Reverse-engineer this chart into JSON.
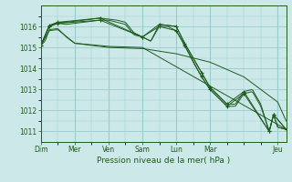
{
  "xlabel": "Pression niveau de la mer( hPa )",
  "bg_color": "#cce8e8",
  "grid_color": "#99cccc",
  "line_color": "#1e5c1e",
  "ylim": [
    1010.5,
    1017.0
  ],
  "yticks": [
    1011,
    1012,
    1013,
    1014,
    1015,
    1016
  ],
  "day_labels": [
    "Dim",
    "Mer",
    "Ven",
    "Sam",
    "Lun",
    "Mar",
    "Jeu"
  ],
  "day_positions": [
    0,
    16,
    32,
    48,
    64,
    80,
    112
  ],
  "xlim": [
    0,
    116
  ],
  "line1_pts": [
    [
      0,
      1015.1
    ],
    [
      4,
      1015.8
    ],
    [
      8,
      1015.85
    ],
    [
      16,
      1015.2
    ],
    [
      32,
      1015.05
    ],
    [
      48,
      1015.0
    ],
    [
      116,
      1011.1
    ]
  ],
  "line2_pts": [
    [
      0,
      1015.1
    ],
    [
      4,
      1016.0
    ],
    [
      8,
      1016.15
    ],
    [
      12,
      1016.1
    ],
    [
      16,
      1016.15
    ],
    [
      20,
      1016.2
    ],
    [
      24,
      1016.25
    ],
    [
      28,
      1016.3
    ],
    [
      32,
      1016.3
    ],
    [
      36,
      1016.2
    ],
    [
      40,
      1016.1
    ],
    [
      44,
      1015.6
    ],
    [
      48,
      1015.5
    ],
    [
      52,
      1015.3
    ],
    [
      56,
      1016.0
    ],
    [
      60,
      1016.0
    ],
    [
      64,
      1015.8
    ],
    [
      68,
      1015.1
    ],
    [
      72,
      1014.3
    ],
    [
      76,
      1013.6
    ],
    [
      80,
      1013.0
    ],
    [
      84,
      1012.6
    ],
    [
      88,
      1012.2
    ],
    [
      92,
      1012.2
    ],
    [
      96,
      1012.8
    ],
    [
      100,
      1012.9
    ],
    [
      104,
      1012.2
    ],
    [
      108,
      1011.0
    ],
    [
      110,
      1011.8
    ],
    [
      112,
      1011.2
    ],
    [
      116,
      1011.1
    ]
  ],
  "line3_pts": [
    [
      0,
      1015.1
    ],
    [
      4,
      1016.05
    ],
    [
      8,
      1016.2
    ],
    [
      12,
      1016.2
    ],
    [
      16,
      1016.25
    ],
    [
      20,
      1016.3
    ],
    [
      24,
      1016.35
    ],
    [
      28,
      1016.4
    ],
    [
      32,
      1016.35
    ],
    [
      36,
      1016.3
    ],
    [
      40,
      1016.2
    ],
    [
      44,
      1015.7
    ],
    [
      48,
      1015.5
    ],
    [
      52,
      1015.3
    ],
    [
      56,
      1016.1
    ],
    [
      60,
      1016.05
    ],
    [
      64,
      1016.0
    ],
    [
      68,
      1015.2
    ],
    [
      72,
      1014.5
    ],
    [
      76,
      1013.8
    ],
    [
      80,
      1013.1
    ],
    [
      84,
      1012.7
    ],
    [
      88,
      1012.3
    ],
    [
      92,
      1012.3
    ],
    [
      96,
      1012.9
    ],
    [
      100,
      1013.0
    ],
    [
      104,
      1012.3
    ],
    [
      108,
      1011.0
    ],
    [
      110,
      1011.8
    ],
    [
      112,
      1011.2
    ],
    [
      116,
      1011.1
    ]
  ],
  "line4_pts": [
    [
      0,
      1015.1
    ],
    [
      2,
      1015.3
    ],
    [
      4,
      1015.85
    ],
    [
      8,
      1015.9
    ],
    [
      12,
      1015.5
    ],
    [
      16,
      1015.2
    ],
    [
      20,
      1015.15
    ],
    [
      24,
      1015.1
    ],
    [
      32,
      1015.0
    ],
    [
      48,
      1014.95
    ],
    [
      64,
      1014.7
    ],
    [
      80,
      1014.3
    ],
    [
      96,
      1013.6
    ],
    [
      112,
      1012.4
    ],
    [
      116,
      1011.5
    ]
  ],
  "marker_line2_pts": [
    [
      0,
      1015.1
    ],
    [
      4,
      1016.0
    ],
    [
      8,
      1016.15
    ],
    [
      28,
      1016.3
    ],
    [
      48,
      1015.5
    ],
    [
      56,
      1016.0
    ],
    [
      64,
      1015.8
    ],
    [
      68,
      1015.1
    ],
    [
      76,
      1013.6
    ],
    [
      80,
      1013.0
    ],
    [
      88,
      1012.2
    ],
    [
      96,
      1012.8
    ],
    [
      108,
      1011.0
    ],
    [
      110,
      1011.8
    ],
    [
      116,
      1011.1
    ]
  ],
  "marker_line3_pts": [
    [
      0,
      1015.1
    ],
    [
      4,
      1016.05
    ],
    [
      8,
      1016.2
    ],
    [
      28,
      1016.4
    ],
    [
      48,
      1015.5
    ],
    [
      56,
      1016.1
    ],
    [
      64,
      1016.0
    ],
    [
      68,
      1015.2
    ],
    [
      76,
      1013.8
    ],
    [
      80,
      1013.1
    ],
    [
      88,
      1012.3
    ],
    [
      96,
      1012.9
    ],
    [
      108,
      1011.0
    ],
    [
      110,
      1011.8
    ],
    [
      116,
      1011.1
    ]
  ]
}
